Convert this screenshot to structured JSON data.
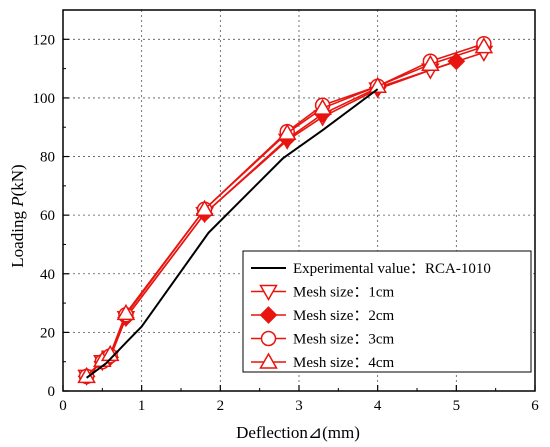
{
  "chart_data": {
    "type": "line",
    "xlabel": "Deflection⊿(mm)",
    "ylabel": "Loading P(kN)",
    "ylabel_prefix": "Loading ",
    "ylabel_var": "P",
    "ylabel_suffix": "(kN)",
    "xlim": [
      0,
      6
    ],
    "ylim": [
      0,
      130
    ],
    "xticks": [
      "0",
      "1",
      "2",
      "3",
      "4",
      "5",
      "6"
    ],
    "yticks": [
      "0",
      "20",
      "40",
      "60",
      "80",
      "100",
      "120"
    ],
    "grid": true,
    "legend_position": "bottom-right",
    "series": [
      {
        "name": "Experimental value：RCA-1010",
        "marker": "none",
        "color": "#000000",
        "x": [
          0.3,
          0.55,
          0.8,
          1.0,
          1.85,
          2.8,
          3.3,
          4.0
        ],
        "y": [
          4.5,
          9.5,
          16.5,
          22,
          54,
          79.5,
          89,
          103
        ]
      },
      {
        "name": "Mesh size：1cm",
        "marker": "triangle-down",
        "color": "#e8140f",
        "x": [
          0.3,
          0.5,
          0.6,
          0.8,
          1.8,
          2.85,
          3.3,
          4.0,
          4.67,
          5.35
        ],
        "y": [
          5,
          10,
          11.5,
          25,
          60.5,
          85.5,
          93.5,
          103,
          109.5,
          115.5
        ]
      },
      {
        "name": "Mesh size：2cm",
        "marker": "diamond",
        "color": "#e8140f",
        "x": [
          0.3,
          0.5,
          0.6,
          0.8,
          1.8,
          2.85,
          3.3,
          4.0,
          5.0
        ],
        "y": [
          5,
          10,
          11.5,
          25,
          60.5,
          86,
          94.5,
          103.5,
          112.5
        ]
      },
      {
        "name": "Mesh size：3cm",
        "marker": "circle",
        "color": "#e8140f",
        "x": [
          0.3,
          0.5,
          0.6,
          0.8,
          1.8,
          2.85,
          3.3,
          4.0,
          4.67,
          5.35
        ],
        "y": [
          5,
          10,
          12,
          26,
          62,
          88.5,
          97.5,
          104,
          112.5,
          118.5
        ]
      },
      {
        "name": "Mesh size：4cm",
        "marker": "triangle-up",
        "color": "#e8140f",
        "x": [
          0.3,
          0.5,
          0.6,
          0.8,
          1.8,
          2.85,
          3.3,
          4.0,
          4.67,
          5.35
        ],
        "y": [
          5,
          10.5,
          12.5,
          26.5,
          62,
          88,
          96.5,
          104,
          111.5,
          117.5
        ]
      }
    ]
  }
}
